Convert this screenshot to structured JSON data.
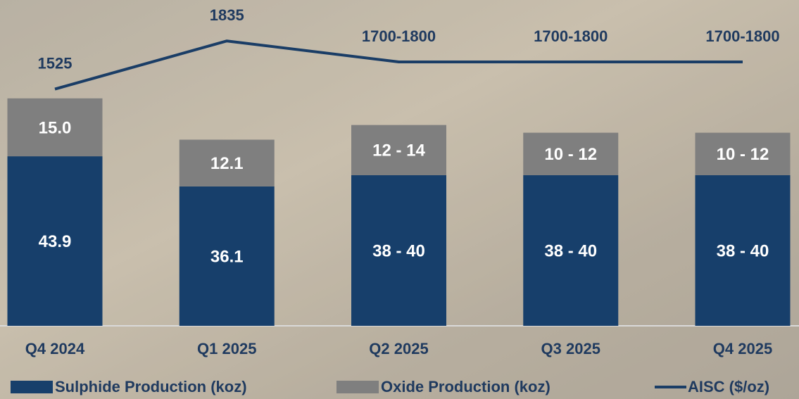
{
  "chart_data": {
    "type": "bar",
    "stacked": true,
    "categories": [
      "Q4 2024",
      "Q1 2025",
      "Q2 2025",
      "Q3 2025",
      "Q4 2025"
    ],
    "series": [
      {
        "name": "Sulphide Production (koz)",
        "color": "#173f6b",
        "values": [
          43.9,
          36.1,
          39,
          39,
          39
        ],
        "value_labels": [
          "43.9",
          "36.1",
          "38 - 40",
          "38 - 40",
          "38 - 40"
        ]
      },
      {
        "name": "Oxide Production (koz)",
        "color": "#7f7f7f",
        "values": [
          15.0,
          12.1,
          13,
          11,
          11
        ],
        "value_labels": [
          "15.0",
          "12.1",
          "12 - 14",
          "10 - 12",
          "10 - 12"
        ]
      },
      {
        "name": "AISC ($/oz)",
        "type": "line",
        "axis": "y2",
        "color": "#1a3d66",
        "values": [
          1525,
          1835,
          1700,
          1700,
          1700
        ],
        "value_labels": [
          "1525",
          "1835",
          "1700-1800",
          "1700-1800",
          "1700-1800"
        ]
      }
    ],
    "ylim": [
      0,
      82
    ],
    "y2lim": [
      0,
      2040
    ],
    "legend": "bottom"
  }
}
